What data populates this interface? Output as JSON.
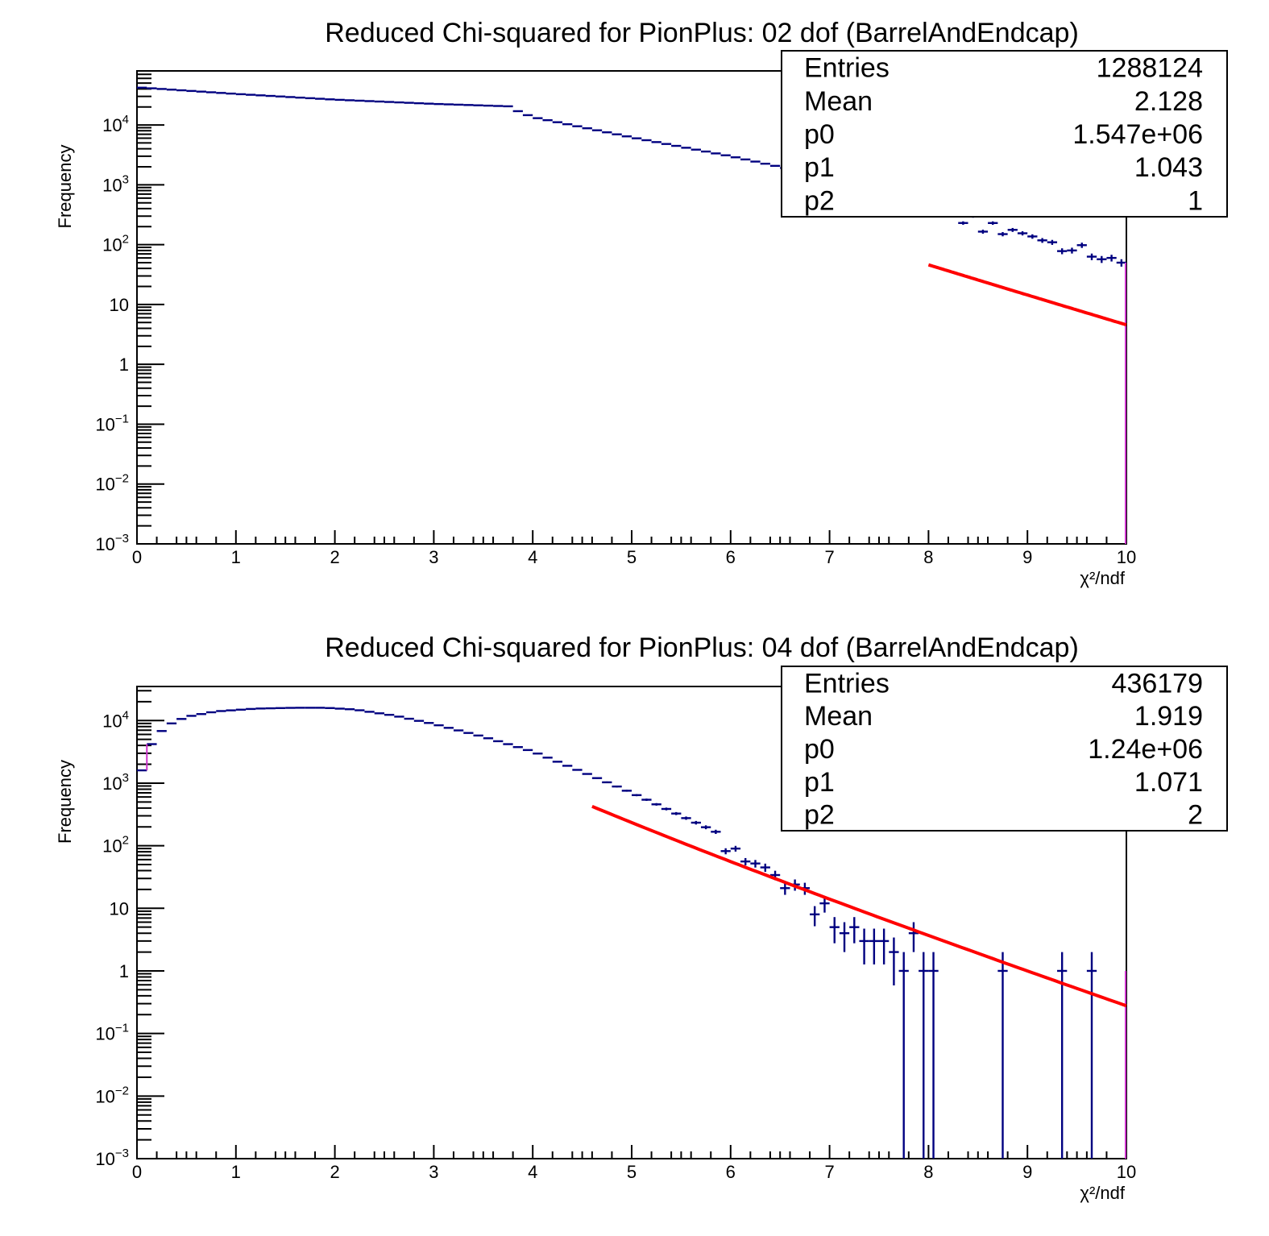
{
  "colors": {
    "data": "#000080",
    "fit": "#ff0000",
    "range_marker": "#cc33cc",
    "frame": "#000000",
    "background": "#ffffff"
  },
  "chart_data": [
    {
      "type": "histogram",
      "title": "Reduced Chi-squared for PionPlus: 02 dof (BarrelAndEndcap)",
      "xlabel": "χ²/ndf",
      "ylabel": "Frequency",
      "xlim": [
        0,
        10
      ],
      "ylim": [
        0.001,
        80000
      ],
      "yscale": "log",
      "x_ticks": [
        "0",
        "1",
        "2",
        "3",
        "4",
        "5",
        "6",
        "7",
        "8",
        "9",
        "10"
      ],
      "y_ticks": [
        {
          "value": 0.001,
          "base": "10",
          "exp": "−3"
        },
        {
          "value": 0.01,
          "base": "10",
          "exp": "−2"
        },
        {
          "value": 0.1,
          "base": "10",
          "exp": "−1"
        },
        {
          "value": 1,
          "base": "1",
          "exp": ""
        },
        {
          "value": 10,
          "base": "10",
          "exp": ""
        },
        {
          "value": 100,
          "base": "10",
          "exp": "2"
        },
        {
          "value": 1000,
          "base": "10",
          "exp": "3"
        },
        {
          "value": 10000,
          "base": "10",
          "exp": "4"
        }
      ],
      "bin_width": 0.1,
      "anchors": [
        [
          0.05,
          42000
        ],
        [
          1.0,
          33000
        ],
        [
          2.0,
          26500
        ],
        [
          3.0,
          22500
        ],
        [
          3.75,
          20500
        ],
        [
          3.85,
          17000
        ],
        [
          4.0,
          13500
        ],
        [
          5.0,
          6200
        ],
        [
          6.0,
          3000
        ],
        [
          7.0,
          1320
        ],
        [
          8.0,
          540
        ],
        [
          9.0,
          145
        ],
        [
          9.95,
          50
        ]
      ],
      "noise_points": [
        [
          8.35,
          230
        ],
        [
          8.55,
          165
        ],
        [
          8.75,
          150
        ],
        [
          9.15,
          118
        ],
        [
          9.35,
          78
        ],
        [
          9.45,
          80
        ],
        [
          9.55,
          98
        ],
        [
          9.65,
          63
        ],
        [
          9.75,
          57
        ],
        [
          9.85,
          60
        ]
      ],
      "fit_range": [
        8.0,
        10.0
      ],
      "fit_function": "p0*exp(-p1*x)/x^p2",
      "stats": [
        {
          "label": "Entries",
          "value": "1288124"
        },
        {
          "label": "Mean",
          "value": "2.128"
        },
        {
          "label": "p0",
          "value": "1.547e+06"
        },
        {
          "label": "p1",
          "value": "1.043"
        },
        {
          "label": "p2",
          "value": "1"
        }
      ],
      "fit_params": {
        "p0": 1547000,
        "p1": 1.043,
        "p2": 1
      }
    },
    {
      "type": "histogram",
      "title": "Reduced Chi-squared for PionPlus: 04 dof (BarrelAndEndcap)",
      "xlabel": "χ²/ndf",
      "ylabel": "Frequency",
      "xlim": [
        0,
        10
      ],
      "ylim": [
        0.001,
        35000
      ],
      "yscale": "log",
      "x_ticks": [
        "0",
        "1",
        "2",
        "3",
        "4",
        "5",
        "6",
        "7",
        "8",
        "9",
        "10"
      ],
      "y_ticks": [
        {
          "value": 0.001,
          "base": "10",
          "exp": "−3"
        },
        {
          "value": 0.01,
          "base": "10",
          "exp": "−2"
        },
        {
          "value": 0.1,
          "base": "10",
          "exp": "−1"
        },
        {
          "value": 1,
          "base": "1",
          "exp": ""
        },
        {
          "value": 10,
          "base": "10",
          "exp": ""
        },
        {
          "value": 100,
          "base": "10",
          "exp": "2"
        },
        {
          "value": 1000,
          "base": "10",
          "exp": "3"
        },
        {
          "value": 10000,
          "base": "10",
          "exp": "4"
        }
      ],
      "bin_width": 0.1,
      "anchors": [
        [
          0.05,
          1600
        ],
        [
          0.15,
          4200
        ],
        [
          0.25,
          6800
        ],
        [
          0.35,
          9000
        ],
        [
          0.5,
          11500
        ],
        [
          0.8,
          14000
        ],
        [
          1.2,
          15500
        ],
        [
          1.6,
          16000
        ],
        [
          1.9,
          16000
        ],
        [
          2.2,
          15000
        ],
        [
          2.6,
          12000
        ],
        [
          3.0,
          8800
        ],
        [
          3.5,
          5500
        ],
        [
          4.0,
          3200
        ],
        [
          4.6,
          1300
        ],
        [
          5.0,
          700
        ],
        [
          5.5,
          300
        ],
        [
          6.0,
          130
        ],
        [
          6.5,
          45
        ],
        [
          7.0,
          12
        ],
        [
          7.5,
          3.5
        ],
        [
          7.95,
          1.5
        ],
        [
          8.05,
          1
        ]
      ],
      "noise_points": [
        [
          5.95,
          82
        ],
        [
          6.05,
          90
        ],
        [
          6.15,
          56
        ],
        [
          6.25,
          52
        ],
        [
          6.35,
          45
        ],
        [
          6.45,
          34
        ],
        [
          6.55,
          21
        ],
        [
          6.65,
          24
        ],
        [
          6.75,
          21
        ],
        [
          6.85,
          8
        ],
        [
          6.95,
          12
        ],
        [
          7.05,
          5
        ],
        [
          7.15,
          4
        ],
        [
          7.25,
          5
        ],
        [
          7.35,
          3
        ],
        [
          7.45,
          3
        ],
        [
          7.55,
          3
        ],
        [
          7.65,
          2
        ],
        [
          7.75,
          1
        ],
        [
          7.85,
          4
        ],
        [
          7.95,
          1
        ],
        [
          8.05,
          1
        ],
        [
          8.75,
          1
        ],
        [
          9.35,
          1
        ],
        [
          9.65,
          1
        ]
      ],
      "empty_after": 8.1,
      "fit_range": [
        4.6,
        10.0
      ],
      "fit_function": "p0*exp(-p1*x)/x^p2",
      "stats": [
        {
          "label": "Entries",
          "value": "436179"
        },
        {
          "label": "Mean",
          "value": "1.919"
        },
        {
          "label": "p0",
          "value": "1.24e+06"
        },
        {
          "label": "p1",
          "value": "1.071"
        },
        {
          "label": "p2",
          "value": "2"
        }
      ],
      "fit_params": {
        "p0": 1240000,
        "p1": 1.071,
        "p2": 2
      }
    }
  ]
}
